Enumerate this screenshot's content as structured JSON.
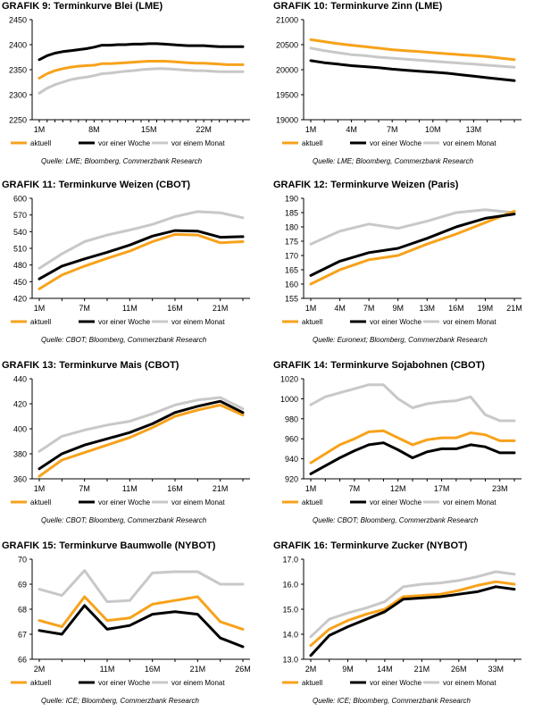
{
  "colors": {
    "aktuell": "#F7A21B",
    "woche": "#000000",
    "monat": "#C8C8C8",
    "axis": "#000000"
  },
  "panels": [
    {
      "title_prefix": "GRAFIK 9:",
      "title": "Terminkurve Blei (LME)",
      "source": "Quelle: LME; Bloomberg, Commerzbank Research",
      "chart_data": {
        "type": "line",
        "categories": [
          "1M",
          "",
          "",
          "",
          "",
          "",
          "",
          "8M",
          "",
          "",
          "",
          "",
          "",
          "",
          "15M",
          "",
          "",
          "",
          "",
          "",
          "",
          "22M",
          "",
          "",
          "",
          "",
          ""
        ],
        "ylim": [
          2250,
          2450
        ],
        "yticks": [
          2250,
          2300,
          2350,
          2400,
          2450
        ],
        "series": [
          {
            "name": "aktuell",
            "values": [
              2333,
              2342,
              2348,
              2352,
              2355,
              2357,
              2358,
              2359,
              2362,
              2362,
              2363,
              2364,
              2365,
              2366,
              2367,
              2367,
              2367,
              2366,
              2365,
              2364,
              2363,
              2363,
              2362,
              2361,
              2360,
              2360,
              2360
            ]
          },
          {
            "name": "vor einer Woche",
            "values": [
              2370,
              2378,
              2383,
              2386,
              2388,
              2390,
              2392,
              2395,
              2399,
              2399,
              2400,
              2400,
              2401,
              2401,
              2402,
              2402,
              2401,
              2400,
              2399,
              2398,
              2398,
              2398,
              2397,
              2396,
              2396,
              2396,
              2396
            ]
          },
          {
            "name": "vor einem Monat",
            "values": [
              2303,
              2313,
              2320,
              2325,
              2330,
              2333,
              2335,
              2338,
              2342,
              2343,
              2345,
              2347,
              2348,
              2350,
              2351,
              2352,
              2352,
              2351,
              2350,
              2349,
              2348,
              2348,
              2347,
              2346,
              2346,
              2346,
              2346
            ]
          }
        ]
      }
    },
    {
      "title_prefix": "GRAFIK 10:",
      "title": "Terminkurve Zinn (LME)",
      "source": "Quelle: LME; Bloomberg, Commerzbank Research",
      "chart_data": {
        "type": "line",
        "categories": [
          "1M",
          "",
          "",
          "4M",
          "",
          "",
          "7M",
          "",
          "",
          "10M",
          "",
          "",
          "13M",
          "",
          "",
          ""
        ],
        "ylim": [
          19000,
          21000
        ],
        "yticks": [
          19000,
          19500,
          20000,
          20500,
          21000
        ],
        "series": [
          {
            "name": "aktuell",
            "values": [
              20600,
              20560,
              20520,
              20490,
              20460,
              20430,
              20400,
              20380,
              20360,
              20340,
              20320,
              20300,
              20280,
              20260,
              20230,
              20200
            ]
          },
          {
            "name": "vor einer Woche",
            "values": [
              20180,
              20140,
              20110,
              20080,
              20060,
              20040,
              20010,
              19990,
              19970,
              19950,
              19930,
              19900,
              19870,
              19840,
              19810,
              19780
            ]
          },
          {
            "name": "vor einem Monat",
            "values": [
              20430,
              20380,
              20340,
              20300,
              20280,
              20250,
              20230,
              20210,
              20190,
              20170,
              20150,
              20130,
              20110,
              20090,
              20070,
              20050
            ]
          }
        ]
      }
    },
    {
      "title_prefix": "GRAFIK 11:",
      "title": "Terminkurve Weizen (CBOT)",
      "source": "Quelle: CBOT; Bloomberg, Commerzbank Research",
      "chart_data": {
        "type": "line",
        "categories": [
          "1M",
          "",
          "7M",
          "",
          "11M",
          "",
          "16M",
          "",
          "21M",
          ""
        ],
        "ylim": [
          420,
          600
        ],
        "yticks": [
          420,
          450,
          480,
          510,
          540,
          570,
          600
        ],
        "series": [
          {
            "name": "aktuell",
            "values": [
              437,
              462,
              478,
              492,
              505,
              522,
              535,
              534,
              520,
              522
            ]
          },
          {
            "name": "vor einer Woche",
            "values": [
              455,
              478,
              491,
              503,
              516,
              532,
              542,
              541,
              530,
              531
            ]
          },
          {
            "name": "vor einem Monat",
            "values": [
              474,
              500,
              522,
              534,
              543,
              553,
              567,
              576,
              574,
              565
            ]
          }
        ]
      }
    },
    {
      "title_prefix": "GRAFIK 12:",
      "title": "Terminkurve Weizen (Paris)",
      "source": "Quelle: Euronext; Bloomberg, Commerzbank Research",
      "chart_data": {
        "type": "line",
        "categories": [
          "1M",
          "4M",
          "7M",
          "9M",
          "13M",
          "16M",
          "19M",
          "21M"
        ],
        "ylim": [
          155,
          190
        ],
        "yticks": [
          155,
          160,
          165,
          170,
          175,
          180,
          185,
          190
        ],
        "series": [
          {
            "name": "aktuell",
            "values": [
              160,
              165,
              168.5,
              170,
              174,
              177.5,
              181.5,
              185.5
            ]
          },
          {
            "name": "vor einer Woche",
            "values": [
              163,
              168,
              171,
              172.5,
              176,
              180,
              183,
              184.5
            ]
          },
          {
            "name": "vor einem Monat",
            "values": [
              174,
              178.5,
              181,
              179.5,
              182,
              185,
              186,
              185
            ]
          }
        ]
      }
    },
    {
      "title_prefix": "GRAFIK 13:",
      "title": "Terminkurve Mais (CBOT)",
      "source": "Quelle: CBOT; Bloomberg, Commerzbank Research",
      "chart_data": {
        "type": "line",
        "categories": [
          "1M",
          "",
          "7M",
          "",
          "11M",
          "",
          "16M",
          "",
          "21M",
          ""
        ],
        "ylim": [
          360,
          440
        ],
        "yticks": [
          360,
          380,
          400,
          420,
          440
        ],
        "series": [
          {
            "name": "aktuell",
            "values": [
              362,
              375,
              381,
              387,
              393,
              401,
              410,
              415,
              419,
              411
            ]
          },
          {
            "name": "vor einer Woche",
            "values": [
              368,
              380,
              387,
              392,
              397,
              404,
              413,
              418,
              422,
              413
            ]
          },
          {
            "name": "vor einem Monat",
            "values": [
              382,
              394,
              399,
              403,
              406,
              412,
              419,
              423,
              425,
              416
            ]
          }
        ]
      }
    },
    {
      "title_prefix": "GRAFIK 14:",
      "title": "Terminkurve Sojabohnen (CBOT)",
      "source": "Quelle: CBOT; Bloomberg, Commerzbank Research",
      "chart_data": {
        "type": "line",
        "categories": [
          "1M",
          "",
          "",
          "7M",
          "",
          "",
          "12M",
          "",
          "",
          "17M",
          "",
          "",
          "",
          "23M",
          ""
        ],
        "ylim": [
          920,
          1020
        ],
        "yticks": [
          920,
          940,
          960,
          980,
          1000,
          1020
        ],
        "series": [
          {
            "name": "aktuell",
            "values": [
              936,
              945,
              954,
              960,
              967,
              968,
              961,
              954,
              959,
              961,
              961,
              966,
              964,
              958,
              958
            ]
          },
          {
            "name": "vor einer Woche",
            "values": [
              925,
              933,
              941,
              948,
              954,
              956,
              949,
              941,
              947,
              950,
              950,
              954,
              952,
              946,
              946
            ]
          },
          {
            "name": "vor einem Monat",
            "values": [
              994,
              1002,
              1006,
              1010,
              1014,
              1014,
              1000,
              991,
              995,
              997,
              998,
              1002,
              984,
              978,
              978
            ]
          }
        ]
      }
    },
    {
      "title_prefix": "GRAFIK 15:",
      "title": "Terminkurve Baumwolle (NYBOT)",
      "source": "Quelle: ICE; Bloomberg, Commerzbank Research",
      "chart_data": {
        "type": "line",
        "categories": [
          "2M",
          "",
          "",
          "11M",
          "",
          "16M",
          "",
          "21M",
          "",
          "26M"
        ],
        "ylim": [
          66,
          70
        ],
        "yticks": [
          66,
          67,
          68,
          69,
          70
        ],
        "series": [
          {
            "name": "aktuell",
            "values": [
              67.55,
              67.3,
              68.5,
              67.55,
              67.65,
              68.2,
              68.35,
              68.5,
              67.5,
              67.2
            ]
          },
          {
            "name": "vor einer Woche",
            "values": [
              67.15,
              67.0,
              68.15,
              67.2,
              67.35,
              67.8,
              67.9,
              67.8,
              66.85,
              66.5
            ]
          },
          {
            "name": "vor einem Monat",
            "values": [
              68.8,
              68.55,
              69.55,
              68.3,
              68.35,
              69.45,
              69.5,
              69.5,
              69.0,
              69.0
            ]
          }
        ]
      }
    },
    {
      "title_prefix": "GRAFIK 16:",
      "title": "Terminkurve Zucker (NYBOT)",
      "source": "Quelle: ICE; Bloomberg, Commerzbank Research",
      "chart_data": {
        "type": "line",
        "categories": [
          "2M",
          "",
          "9M",
          "",
          "14M",
          "",
          "21M",
          "",
          "26M",
          "",
          "33M",
          ""
        ],
        "ylim": [
          13.0,
          17.0
        ],
        "yticks": [
          13.0,
          14.0,
          15.0,
          16.0,
          17.0
        ],
        "series": [
          {
            "name": "aktuell",
            "values": [
              13.55,
              14.2,
              14.55,
              14.8,
              15.0,
              15.5,
              15.55,
              15.6,
              15.75,
              15.95,
              16.1,
              16.0
            ]
          },
          {
            "name": "vor einer Woche",
            "values": [
              13.15,
              13.95,
              14.3,
              14.6,
              14.9,
              15.4,
              15.45,
              15.5,
              15.6,
              15.7,
              15.9,
              15.8
            ]
          },
          {
            "name": "vor einem Monat",
            "values": [
              13.9,
              14.6,
              14.85,
              15.05,
              15.3,
              15.9,
              16.0,
              16.05,
              16.15,
              16.3,
              16.5,
              16.4
            ]
          }
        ]
      }
    }
  ]
}
